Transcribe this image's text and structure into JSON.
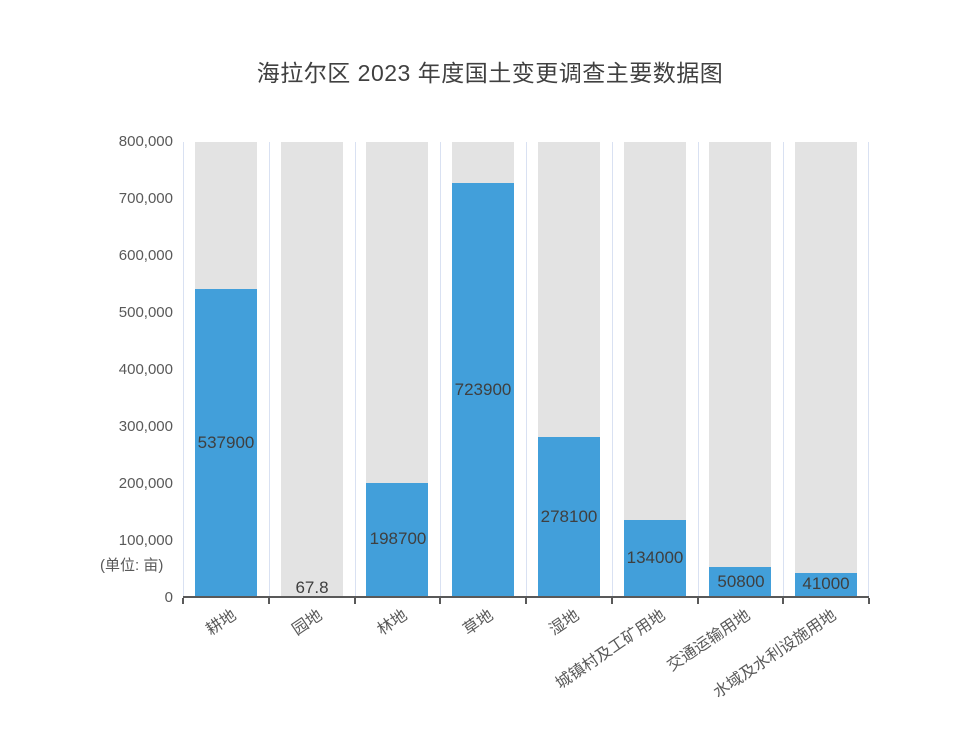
{
  "chart_data": {
    "type": "bar",
    "title": "海拉尔区 2023 年度国土变更调查主要数据图",
    "unit_label": "(单位: 亩)",
    "categories": [
      "耕地",
      "园地",
      "林地",
      "草地",
      "湿地",
      "城镇村及工矿用地",
      "交通运输用地",
      "水域及水利设施用地"
    ],
    "values": [
      537900,
      67.8,
      198700,
      723900,
      278100,
      134000,
      50800,
      41000
    ],
    "data_labels": [
      "537900",
      "67.8",
      "198700",
      "723900",
      "278100",
      "134000",
      "50800",
      "41000"
    ],
    "xlabel": "",
    "ylabel": "(单位: 亩)",
    "ylim": [
      0,
      800000
    ],
    "ytick_step": 100000,
    "ytick_labels": [
      "800,000",
      "700,000",
      "600,000",
      "500,000",
      "400,000",
      "300,000",
      "200,000",
      "100,000",
      "0"
    ],
    "legend": "none",
    "grid": "vertical-category-separators",
    "background_track_bars": true
  },
  "colors": {
    "bar_fill": "#429FDA",
    "track_fill": "#E3E3E3",
    "axis": "#595959",
    "separator": "#D9E1F2",
    "title_text": "#404040",
    "tick_text": "#595959",
    "value_text": "#3F3F3F"
  }
}
